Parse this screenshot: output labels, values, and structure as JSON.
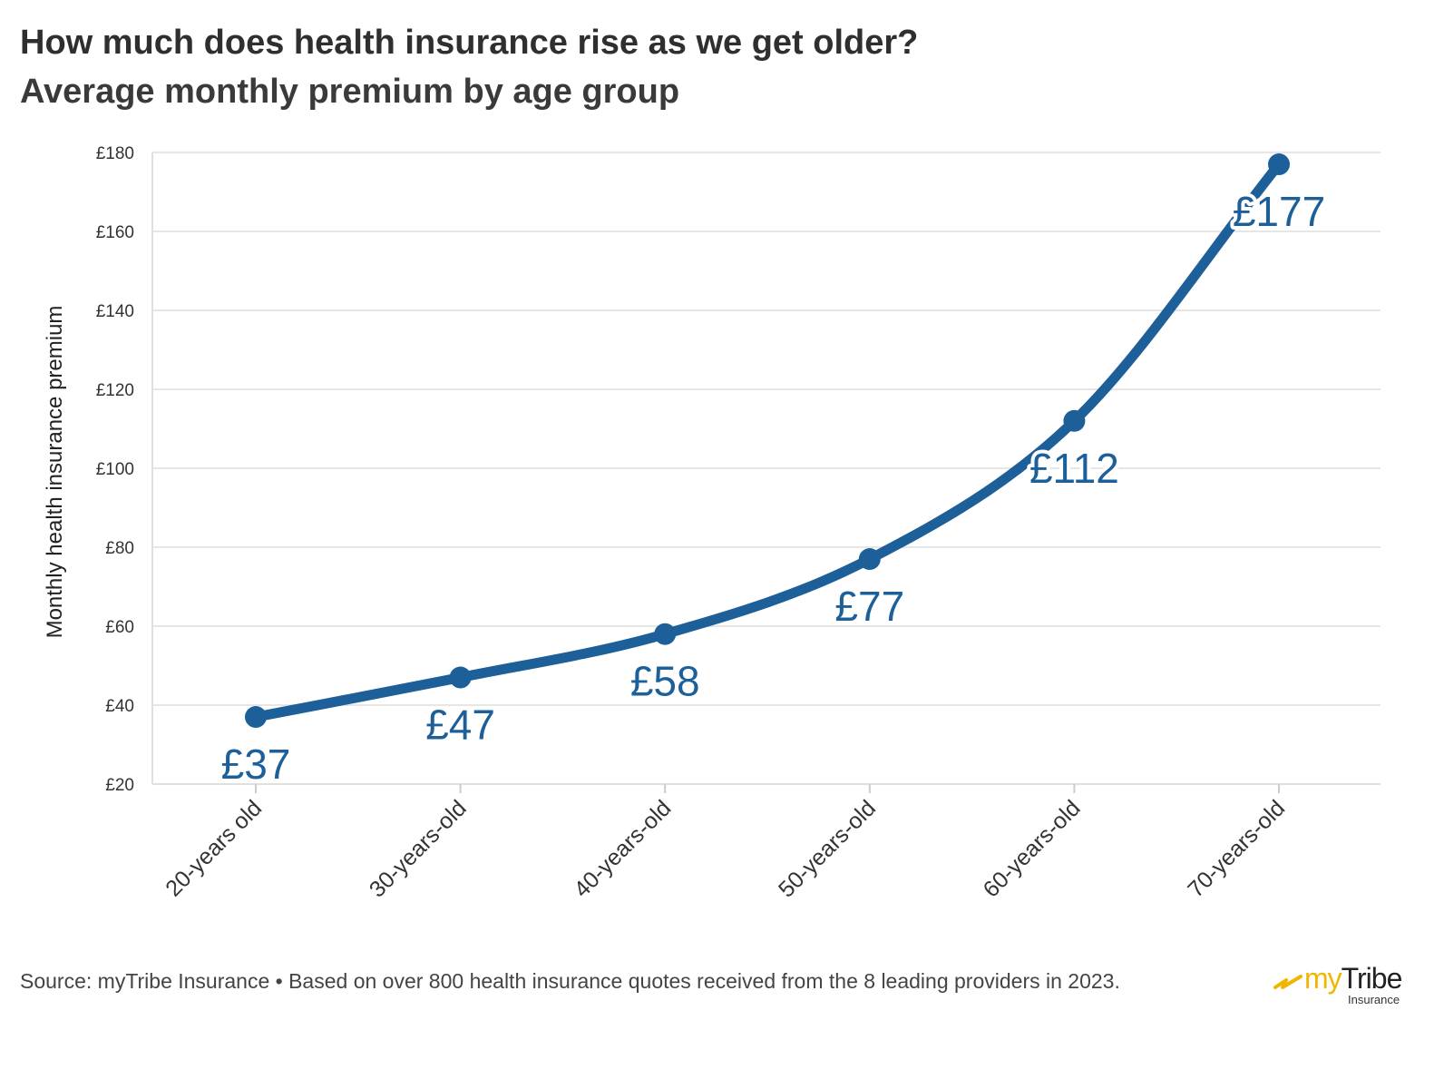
{
  "title": "How much does health insurance rise as we get older?",
  "subtitle": "Average monthly premium by age group",
  "footer": "Source: myTribe Insurance • Based on over 800 health insurance quotes received from the 8 leading providers in 2023.",
  "logo": {
    "prefix": "my",
    "name": "Tribe",
    "sub": "Insurance",
    "accent_color": "#f2b600"
  },
  "colors": {
    "line": "#1d5f99",
    "label": "#1d5f99",
    "grid": "#e6e6e6",
    "axis_text": "#333333"
  },
  "chart_data": {
    "type": "line",
    "title": "How much does health insurance rise as we get older?",
    "subtitle": "Average monthly premium by age group",
    "xlabel": "",
    "ylabel": "Monthly health insurance premium",
    "categories": [
      "20-years old",
      "30-years-old",
      "40-years-old",
      "50-years-old",
      "60-years-old",
      "70-years-old"
    ],
    "values": [
      37,
      47,
      58,
      77,
      112,
      177
    ],
    "data_labels": [
      "£37",
      "£47",
      "£58",
      "£77",
      "£112",
      "£177"
    ],
    "ylim": [
      20,
      180
    ],
    "yticks": [
      20,
      40,
      60,
      80,
      100,
      120,
      140,
      160,
      180
    ],
    "ytick_labels": [
      "£20",
      "£40",
      "£60",
      "£80",
      "£100",
      "£120",
      "£140",
      "£160",
      "£180"
    ],
    "grid": true,
    "smooth": true
  }
}
